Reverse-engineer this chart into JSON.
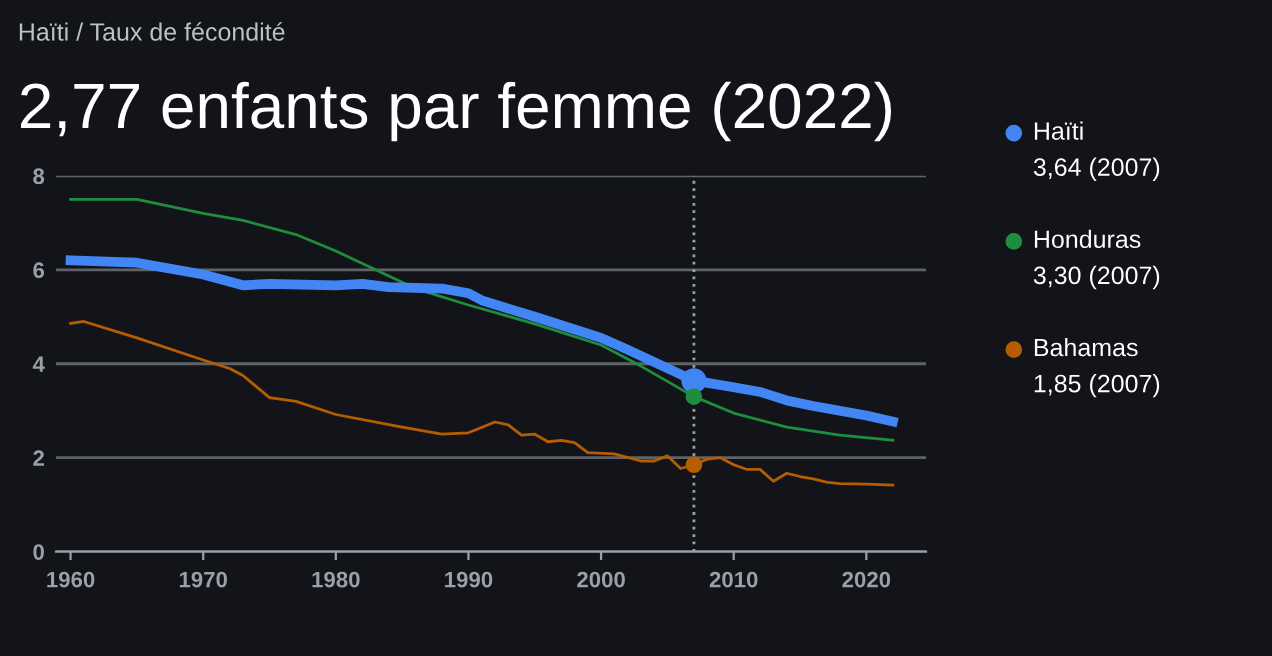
{
  "chart_data": {
    "type": "line",
    "subtitle": "Haïti / Taux de fécondité",
    "title": "2,77 enfants par femme (2022)",
    "series": [
      {
        "name": "Haïti",
        "color": "#4285f4",
        "x": [
          1960,
          1965,
          1970,
          1973,
          1975,
          1980,
          1982,
          1984,
          1988,
          1990,
          1991,
          1995,
          2000,
          2002,
          2007,
          2010,
          2012,
          2014,
          2016,
          2020,
          2022
        ],
        "values": [
          6.2,
          6.15,
          5.9,
          5.67,
          5.7,
          5.67,
          5.7,
          5.63,
          5.6,
          5.5,
          5.35,
          5.0,
          4.55,
          4.3,
          3.64,
          3.5,
          3.4,
          3.22,
          3.1,
          2.9,
          2.77
        ]
      },
      {
        "name": "Honduras",
        "color": "#1e8e3e",
        "x": [
          1960,
          1965,
          1970,
          1973,
          1977,
          1980,
          1983,
          1986,
          1990,
          1995,
          2000,
          2003,
          2007,
          2010,
          2014,
          2018,
          2022
        ],
        "values": [
          7.5,
          7.5,
          7.2,
          7.05,
          6.75,
          6.4,
          6.0,
          5.6,
          5.25,
          4.85,
          4.4,
          3.95,
          3.3,
          2.95,
          2.65,
          2.48,
          2.37
        ]
      },
      {
        "name": "Bahamas",
        "color": "#b55d00",
        "x": [
          1960,
          1961,
          1965,
          1970,
          1972,
          1973,
          1975,
          1977,
          1980,
          1985,
          1988,
          1990,
          1992,
          1993,
          1994,
          1995,
          1996,
          1997,
          1998,
          1999,
          2001,
          2003,
          2004,
          2005,
          2006,
          2007,
          2008,
          2009,
          2010,
          2011,
          2012,
          2013,
          2014,
          2015,
          2016,
          2017,
          2018,
          2020,
          2022
        ],
        "values": [
          4.86,
          4.9,
          4.55,
          4.08,
          3.9,
          3.75,
          3.28,
          3.2,
          2.92,
          2.65,
          2.5,
          2.53,
          2.76,
          2.7,
          2.48,
          2.5,
          2.34,
          2.37,
          2.32,
          2.11,
          2.08,
          1.93,
          1.93,
          2.04,
          1.77,
          1.85,
          1.97,
          2.0,
          1.85,
          1.75,
          1.75,
          1.5,
          1.67,
          1.6,
          1.55,
          1.48,
          1.45,
          1.44,
          1.42
        ]
      }
    ],
    "annotations": [
      "3,64 (2007)",
      "3,30 (2007)",
      "1,85 (2007)"
    ],
    "ref_lines": [
      {
        "axis": "x",
        "value": 2007,
        "color": "#9aa0a6",
        "line_style": "dotted"
      }
    ],
    "xlim": [
      1958.9,
      2024.5
    ],
    "xticks": [
      1960,
      1970,
      1980,
      1990,
      2000,
      2010,
      2020
    ],
    "ylim": [
      0,
      8
    ],
    "yticks": [
      0,
      2,
      4,
      6,
      8
    ],
    "grid": "y",
    "legend": "right",
    "marker": "none",
    "line_style": "solid"
  }
}
